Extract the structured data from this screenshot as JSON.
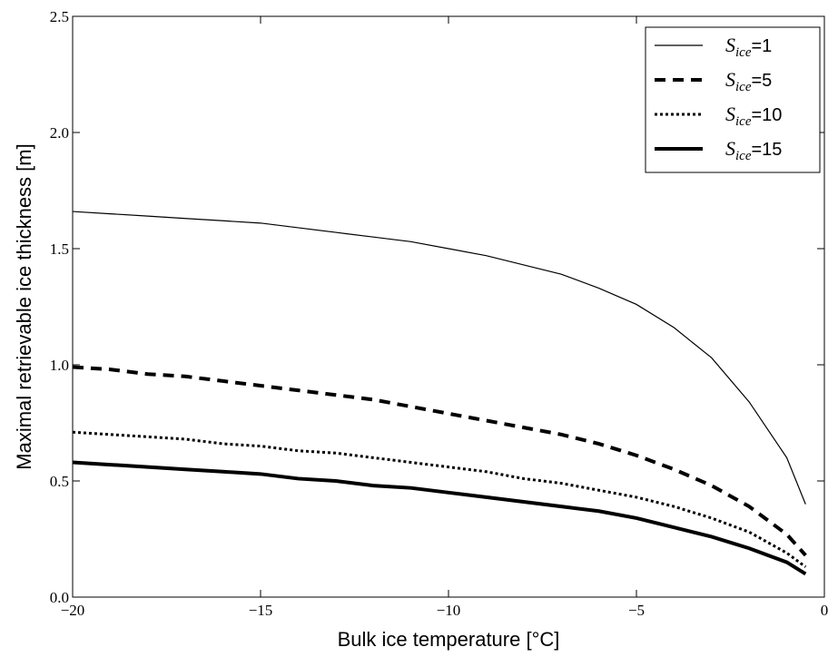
{
  "chart_data": {
    "type": "line",
    "x_label": "Bulk ice temperature [°C]",
    "y_label": "Maximal retrievable ice thickness [m]",
    "x": [
      -20,
      -19,
      -18,
      -17,
      -16,
      -15,
      -14,
      -13,
      -12,
      -11,
      -10,
      -9,
      -8,
      -7,
      -6,
      -5,
      -4,
      -3,
      -2,
      -1,
      -0.5
    ],
    "series": [
      {
        "name": "Sice=1",
        "color": "#000000",
        "linestyle": "solid",
        "linewidth": 1.2,
        "values": [
          1.66,
          1.65,
          1.64,
          1.63,
          1.62,
          1.61,
          1.59,
          1.57,
          1.55,
          1.53,
          1.5,
          1.47,
          1.43,
          1.39,
          1.33,
          1.26,
          1.16,
          1.03,
          0.84,
          0.6,
          0.4
        ]
      },
      {
        "name": "Sice=5",
        "color": "#000000",
        "linestyle": "dashed",
        "linewidth": 4,
        "values": [
          0.99,
          0.98,
          0.96,
          0.95,
          0.93,
          0.91,
          0.89,
          0.87,
          0.85,
          0.82,
          0.79,
          0.76,
          0.73,
          0.7,
          0.66,
          0.61,
          0.55,
          0.48,
          0.39,
          0.27,
          0.18
        ]
      },
      {
        "name": "Sice=10",
        "color": "#000000",
        "linestyle": "dotted",
        "linewidth": 3,
        "values": [
          0.71,
          0.7,
          0.69,
          0.68,
          0.66,
          0.65,
          0.63,
          0.62,
          0.6,
          0.58,
          0.56,
          0.54,
          0.51,
          0.49,
          0.46,
          0.43,
          0.39,
          0.34,
          0.28,
          0.19,
          0.13
        ]
      },
      {
        "name": "Sice=15",
        "color": "#000000",
        "linestyle": "solid",
        "linewidth": 4,
        "values": [
          0.58,
          0.57,
          0.56,
          0.55,
          0.54,
          0.53,
          0.51,
          0.5,
          0.48,
          0.47,
          0.45,
          0.43,
          0.41,
          0.39,
          0.37,
          0.34,
          0.3,
          0.26,
          0.21,
          0.15,
          0.1
        ]
      }
    ],
    "xlim": [
      -20,
      0
    ],
    "ylim": [
      0,
      2.5
    ],
    "xticks": [
      {
        "value": -20,
        "label": "−20"
      },
      {
        "value": -15,
        "label": "−15"
      },
      {
        "value": -10,
        "label": "−10"
      },
      {
        "value": -5,
        "label": "−5"
      },
      0
    ],
    "yticks": [
      {
        "value": 0,
        "label": "0.0"
      },
      0.5,
      {
        "value": 1,
        "label": "1.0"
      },
      1.5,
      {
        "value": 2,
        "label": "2.0"
      },
      2.5
    ],
    "grid": false,
    "legend": "upper right"
  }
}
